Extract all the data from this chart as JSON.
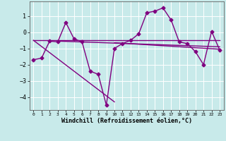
{
  "title": "",
  "xlabel": "Windchill (Refroidissement éolien,°C)",
  "ylabel": "",
  "bg_color": "#c8eaea",
  "line_color": "#800080",
  "grid_color": "#ffffff",
  "xlim": [
    -0.5,
    23.5
  ],
  "ylim": [
    -4.8,
    1.9
  ],
  "xticks": [
    0,
    1,
    2,
    3,
    4,
    5,
    6,
    7,
    8,
    9,
    10,
    11,
    12,
    13,
    14,
    15,
    16,
    17,
    18,
    19,
    20,
    21,
    22,
    23
  ],
  "yticks": [
    -4,
    -3,
    -2,
    -1,
    0,
    1
  ],
  "series1_x": [
    0,
    1,
    2,
    3,
    4,
    5,
    6,
    7,
    8,
    9,
    10,
    11,
    12,
    13,
    14,
    15,
    16,
    17,
    18,
    19,
    20,
    21,
    22,
    23
  ],
  "series1_y": [
    -1.7,
    -1.6,
    -0.55,
    -0.6,
    0.6,
    -0.4,
    -0.6,
    -2.4,
    -2.6,
    -4.5,
    -1.0,
    -0.7,
    -0.5,
    -0.1,
    1.2,
    1.3,
    1.5,
    0.75,
    -0.6,
    -0.7,
    -1.2,
    -2.0,
    0.05,
    -1.1
  ],
  "series2_x": [
    0,
    23
  ],
  "series2_y": [
    -0.5,
    -0.5
  ],
  "series3_x": [
    3,
    23
  ],
  "series3_y": [
    -0.55,
    -0.9
  ],
  "series4_x": [
    10,
    23
  ],
  "series4_y": [
    -0.65,
    -1.05
  ],
  "series5_x": [
    0,
    10
  ],
  "series5_y": [
    -0.5,
    -4.3
  ],
  "marker": "D",
  "markersize": 2.5,
  "linewidth": 1.0
}
